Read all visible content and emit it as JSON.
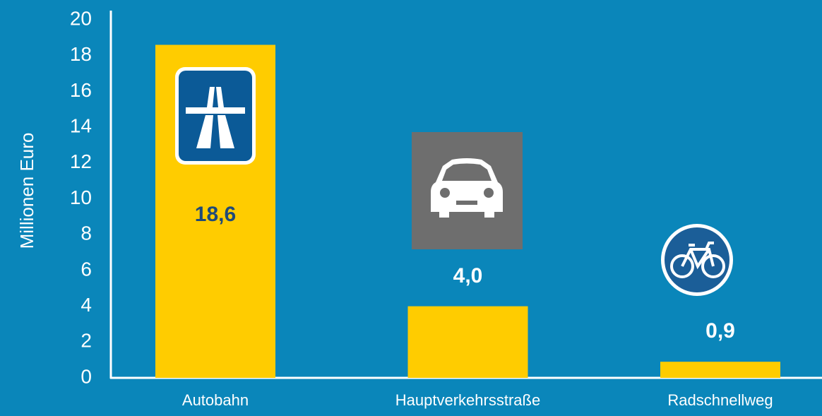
{
  "chart_data": {
    "type": "bar",
    "y_label": "Millionen Euro",
    "categories": [
      "Autobahn",
      "Hauptverkehrsstraße",
      "Radschnellweg"
    ],
    "values": [
      18.6,
      4.0,
      0.9
    ],
    "value_labels": [
      "18,6",
      "4,0",
      "0,9"
    ],
    "color": "#ffcc00",
    "ylim": [
      0,
      20
    ],
    "yticks": [
      0,
      2,
      4,
      6,
      8,
      10,
      12,
      14,
      16,
      18,
      20
    ],
    "grid": false
  }
}
